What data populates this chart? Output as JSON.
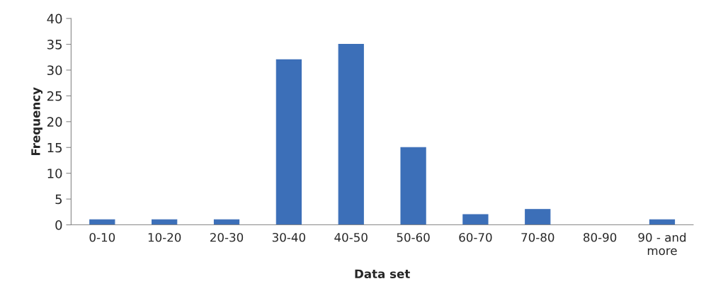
{
  "chart_data": {
    "type": "bar",
    "xlabel": "Data set",
    "ylabel": "Frequency",
    "categories": [
      "0-10",
      "10-20",
      "20-30",
      "30-40",
      "40-50",
      "50-60",
      "60-70",
      "70-80",
      "80-90",
      "90 - and\nmore"
    ],
    "values": [
      1,
      1,
      1,
      32,
      35,
      15,
      2,
      3,
      0,
      1
    ],
    "color": "#3c6fb8",
    "ylim": [
      0,
      40
    ],
    "yticks": [
      0,
      5,
      10,
      15,
      20,
      25,
      30,
      35,
      40
    ],
    "grid": false,
    "legend": false
  }
}
